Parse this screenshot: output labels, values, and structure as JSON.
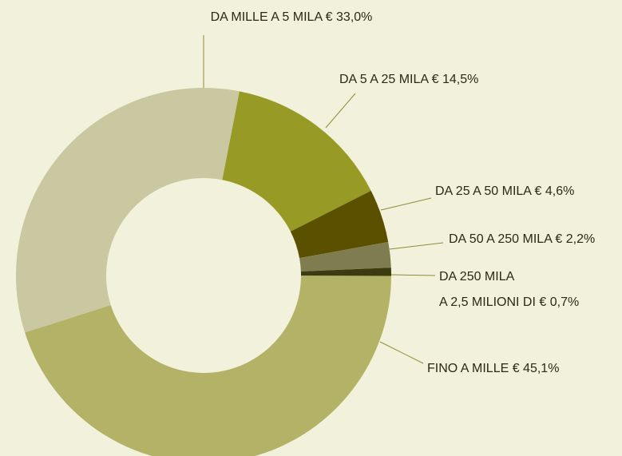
{
  "chart_data": {
    "type": "donut",
    "categories": [
      "DA 5 A 25 MILA €",
      "DA 25 A 50 MILA €",
      "DA 50 A 250 MILA €",
      "DA 250 MILA\nA 2,5 MILIONI DI €",
      "FINO A MILLE €",
      "DA MILLE A 5 MILA €"
    ],
    "values": [
      14.5,
      4.6,
      2.2,
      0.7,
      45.1,
      33.0
    ],
    "value_labels": [
      "14,5%",
      "4,6%",
      "2,2%",
      "0,7%",
      "45,1%",
      "33,0%"
    ],
    "colors": [
      "#989a26",
      "#5a5000",
      "#7f7d50",
      "#3b3a10",
      "#b3b266",
      "#c9c8a0"
    ]
  }
}
